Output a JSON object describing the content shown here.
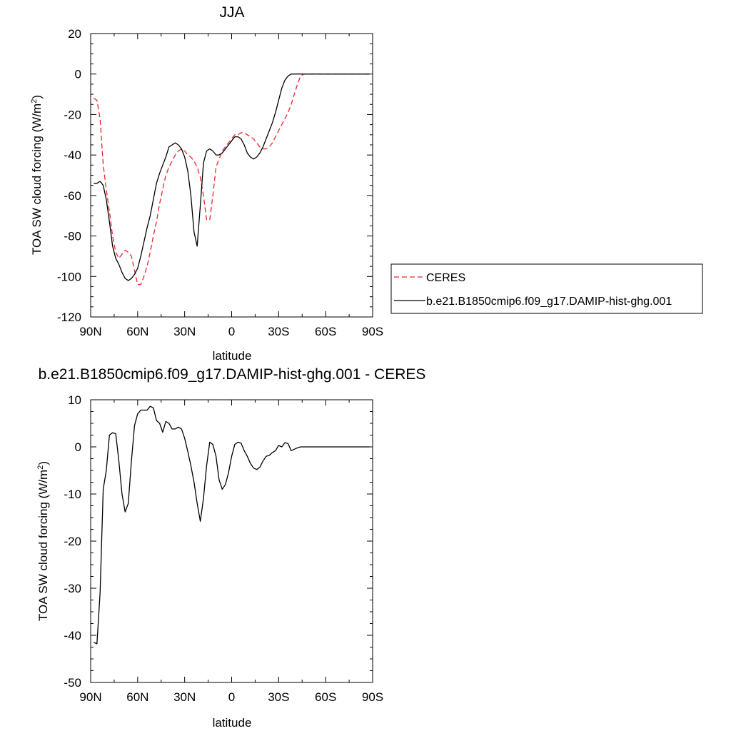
{
  "chart_data": [
    {
      "type": "line",
      "title": "JJA",
      "xlabel": "latitude",
      "ylabel": "TOA SW cloud forcing (W/m",
      "ylabel_sup": "2",
      "ylabel_close": ")",
      "xlim": [
        90,
        -90
      ],
      "ylim": [
        -120,
        20
      ],
      "xticks": [
        {
          "value": 90,
          "label": "90N"
        },
        {
          "value": 60,
          "label": "60N"
        },
        {
          "value": 30,
          "label": "30N"
        },
        {
          "value": 0,
          "label": "0"
        },
        {
          "value": -30,
          "label": "30S"
        },
        {
          "value": -60,
          "label": "60S"
        },
        {
          "value": -90,
          "label": "90S"
        }
      ],
      "yticks": [
        20,
        0,
        -20,
        -40,
        -60,
        -80,
        -100,
        -120
      ],
      "grid": false,
      "legend": "right, outside plot",
      "series": [
        {
          "name": "CERES",
          "color": "#e8262b",
          "dash": "dashed",
          "x": [
            88,
            86,
            84,
            82,
            80,
            78,
            76,
            74,
            72,
            70,
            68,
            66,
            64,
            62,
            60,
            58,
            56,
            54,
            52,
            50,
            48,
            46,
            44,
            42,
            40,
            38,
            36,
            34,
            32,
            30,
            28,
            26,
            24,
            22,
            20,
            18,
            16,
            14,
            12,
            10,
            8,
            6,
            4,
            2,
            0,
            -2,
            -4,
            -6,
            -8,
            -10,
            -12,
            -14,
            -16,
            -18,
            -20,
            -22,
            -24,
            -26,
            -28,
            -30,
            -32,
            -34,
            -36,
            -38,
            -40,
            -42,
            -44,
            -46,
            -48,
            -50,
            -52,
            -54,
            -56,
            -58,
            -60,
            -62,
            -64,
            -66,
            -68,
            -70,
            -72,
            -74,
            -76,
            -78,
            -80,
            -82,
            -84,
            -86,
            -88
          ],
          "y": [
            -12,
            -13,
            -22,
            -45,
            -57,
            -68,
            -80,
            -88,
            -91,
            -89,
            -87,
            -88,
            -90,
            -97,
            -104,
            -104,
            -100,
            -95,
            -88,
            -80,
            -73,
            -64,
            -57,
            -50,
            -46,
            -43,
            -40,
            -38,
            -37,
            -38,
            -40,
            -41,
            -43,
            -46,
            -51,
            -60,
            -72,
            -72,
            -60,
            -46,
            -42,
            -38,
            -36,
            -34,
            -32,
            -30,
            -30,
            -29,
            -29,
            -30,
            -31,
            -32,
            -34,
            -36,
            -37,
            -37,
            -36,
            -34,
            -31,
            -28,
            -25,
            -22,
            -19,
            -15,
            -10,
            -5,
            -1,
            0,
            0,
            0,
            0,
            0,
            0,
            0,
            0,
            0,
            0,
            0,
            0,
            0,
            0,
            0,
            0,
            0,
            0,
            0,
            0,
            0,
            0
          ]
        },
        {
          "name": "b.e21.B1850cmip6.f09_g17.DAMIP-hist-ghg.001",
          "color": "#000000",
          "dash": "solid",
          "x": [
            88,
            86,
            84,
            82,
            80,
            78,
            76,
            74,
            72,
            70,
            68,
            66,
            64,
            62,
            60,
            58,
            56,
            54,
            52,
            50,
            48,
            46,
            44,
            42,
            40,
            38,
            36,
            34,
            32,
            30,
            28,
            26,
            24,
            22,
            20,
            18,
            16,
            14,
            12,
            10,
            8,
            6,
            4,
            2,
            0,
            -2,
            -4,
            -6,
            -8,
            -10,
            -12,
            -14,
            -16,
            -18,
            -20,
            -22,
            -24,
            -26,
            -28,
            -30,
            -32,
            -34,
            -36,
            -38,
            -40,
            -42,
            -44,
            -46,
            -48,
            -50,
            -52,
            -54,
            -56,
            -58,
            -60,
            -62,
            -64,
            -66,
            -68,
            -70,
            -72,
            -74,
            -76,
            -78,
            -80,
            -82,
            -84,
            -86,
            -88
          ],
          "y": [
            -54,
            -54,
            -53,
            -55,
            -62,
            -73,
            -85,
            -91,
            -94,
            -98,
            -101,
            -102,
            -101,
            -99,
            -96,
            -90,
            -83,
            -76,
            -70,
            -62,
            -54,
            -49,
            -45,
            -41,
            -36,
            -35,
            -34,
            -35,
            -37,
            -41,
            -48,
            -60,
            -78,
            -85,
            -65,
            -44,
            -38,
            -37,
            -38,
            -40,
            -40,
            -39,
            -37,
            -35,
            -33,
            -31,
            -31,
            -32,
            -35,
            -39,
            -41,
            -42,
            -41,
            -39,
            -36,
            -32,
            -28,
            -24,
            -19,
            -13,
            -7,
            -3,
            -1,
            0,
            0,
            0,
            0,
            0,
            0,
            0,
            0,
            0,
            0,
            0,
            0,
            0,
            0,
            0,
            0,
            0,
            0,
            0,
            0,
            0,
            0,
            0,
            0,
            0,
            0
          ]
        }
      ]
    },
    {
      "type": "line",
      "title": "b.e21.B1850cmip6.f09_g17.DAMIP-hist-ghg.001 - CERES",
      "xlabel": "latitude",
      "ylabel": "TOA SW cloud forcing (W/m",
      "ylabel_sup": "2",
      "ylabel_close": ")",
      "xlim": [
        90,
        -90
      ],
      "ylim": [
        -50,
        10
      ],
      "xticks": [
        {
          "value": 90,
          "label": "90N"
        },
        {
          "value": 60,
          "label": "60N"
        },
        {
          "value": 30,
          "label": "30N"
        },
        {
          "value": 0,
          "label": "0"
        },
        {
          "value": -30,
          "label": "30S"
        },
        {
          "value": -60,
          "label": "60S"
        },
        {
          "value": -90,
          "label": "90S"
        }
      ],
      "yticks": [
        10,
        0,
        -10,
        -20,
        -30,
        -40,
        -50
      ],
      "grid": false,
      "series": [
        {
          "color": "#000000",
          "dash": "solid",
          "x": [
            88,
            86,
            84,
            82,
            80,
            78,
            76,
            74,
            72,
            70,
            68,
            66,
            64,
            62,
            60,
            58,
            56,
            54,
            52,
            50,
            48,
            46,
            44,
            42,
            40,
            38,
            36,
            34,
            32,
            30,
            28,
            26,
            24,
            22,
            20,
            18,
            16,
            14,
            12,
            10,
            8,
            6,
            4,
            2,
            0,
            -2,
            -4,
            -6,
            -8,
            -10,
            -12,
            -14,
            -16,
            -18,
            -20,
            -22,
            -24,
            -26,
            -28,
            -30,
            -32,
            -34,
            -36,
            -38,
            -40,
            -42,
            -44,
            -46,
            -48,
            -50,
            -52,
            -54,
            -56,
            -58,
            -60,
            -62,
            -64,
            -66,
            -68,
            -70,
            -72,
            -74,
            -76,
            -78,
            -80,
            -82,
            -84,
            -86,
            -88
          ],
          "y": [
            -41.5,
            -41.8,
            -31,
            -9,
            -5,
            2.5,
            3,
            2.8,
            -3,
            -10,
            -13.8,
            -12,
            -3,
            4.5,
            7,
            7.8,
            7.8,
            7.8,
            8.6,
            8.3,
            5.6,
            5,
            3.1,
            5.4,
            5,
            3.8,
            3.8,
            4.2,
            3.8,
            1.8,
            -1,
            -4,
            -7.5,
            -12,
            -15.8,
            -11,
            -4,
            1,
            0.5,
            -2,
            -7,
            -9,
            -8,
            -5.5,
            -2,
            0.5,
            1,
            0.8,
            -0.8,
            -2,
            -3.5,
            -4.5,
            -4.8,
            -4.3,
            -3,
            -2,
            -1.8,
            -1.2,
            -0.8,
            0.3,
            0,
            0.9,
            0.7,
            -0.8,
            -0.5,
            -0.2,
            0,
            0,
            0,
            0,
            0,
            0,
            0,
            0,
            0,
            0,
            0,
            0,
            0,
            0,
            0,
            0,
            0,
            0,
            0,
            0,
            0,
            0,
            0
          ]
        }
      ]
    }
  ]
}
